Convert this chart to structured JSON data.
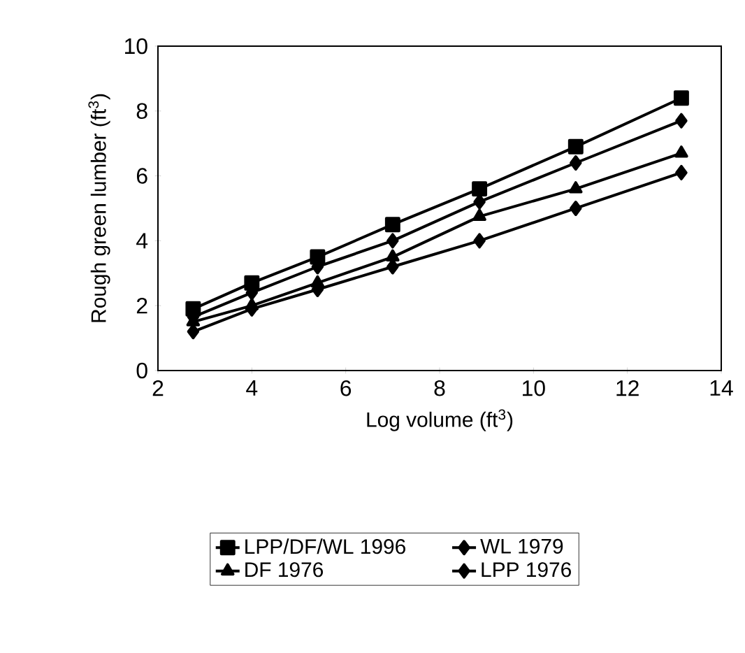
{
  "chart_data": {
    "type": "line",
    "xlabel": "Log volume (ft$^{3}$)",
    "ylabel": "Rough green lumber (ft$^{3}$)",
    "x": [
      2.75,
      4,
      5.4,
      7,
      8.85,
      10.9,
      13.15
    ],
    "series": [
      {
        "name": "LPP/DF/WL 1996",
        "color": "#000000",
        "marker": "square",
        "values": [
          1.9,
          2.7,
          3.5,
          4.5,
          5.6,
          6.9,
          8.4
        ]
      },
      {
        "name": "WL 1979",
        "color": "#000000",
        "marker": "diamond",
        "values": [
          1.65,
          2.4,
          3.2,
          4.0,
          5.2,
          6.4,
          7.7
        ]
      },
      {
        "name": "DF 1976",
        "color": "#000000",
        "marker": "triangle",
        "values": [
          1.5,
          2.0,
          2.7,
          3.5,
          4.75,
          5.6,
          6.7
        ]
      },
      {
        "name": "LPP 1976",
        "color": "#000000",
        "marker": "diamond",
        "values": [
          1.2,
          1.9,
          2.5,
          3.2,
          4.0,
          5.0,
          6.1
        ]
      }
    ],
    "xlim": [
      2,
      14
    ],
    "ylim": [
      0,
      10
    ],
    "xticks": [
      2,
      4,
      6,
      8,
      10,
      12,
      14
    ],
    "yticks": [
      0,
      2,
      4,
      6,
      8,
      10
    ],
    "legend": "bottom",
    "grid": false,
    "line_style": "solid"
  }
}
